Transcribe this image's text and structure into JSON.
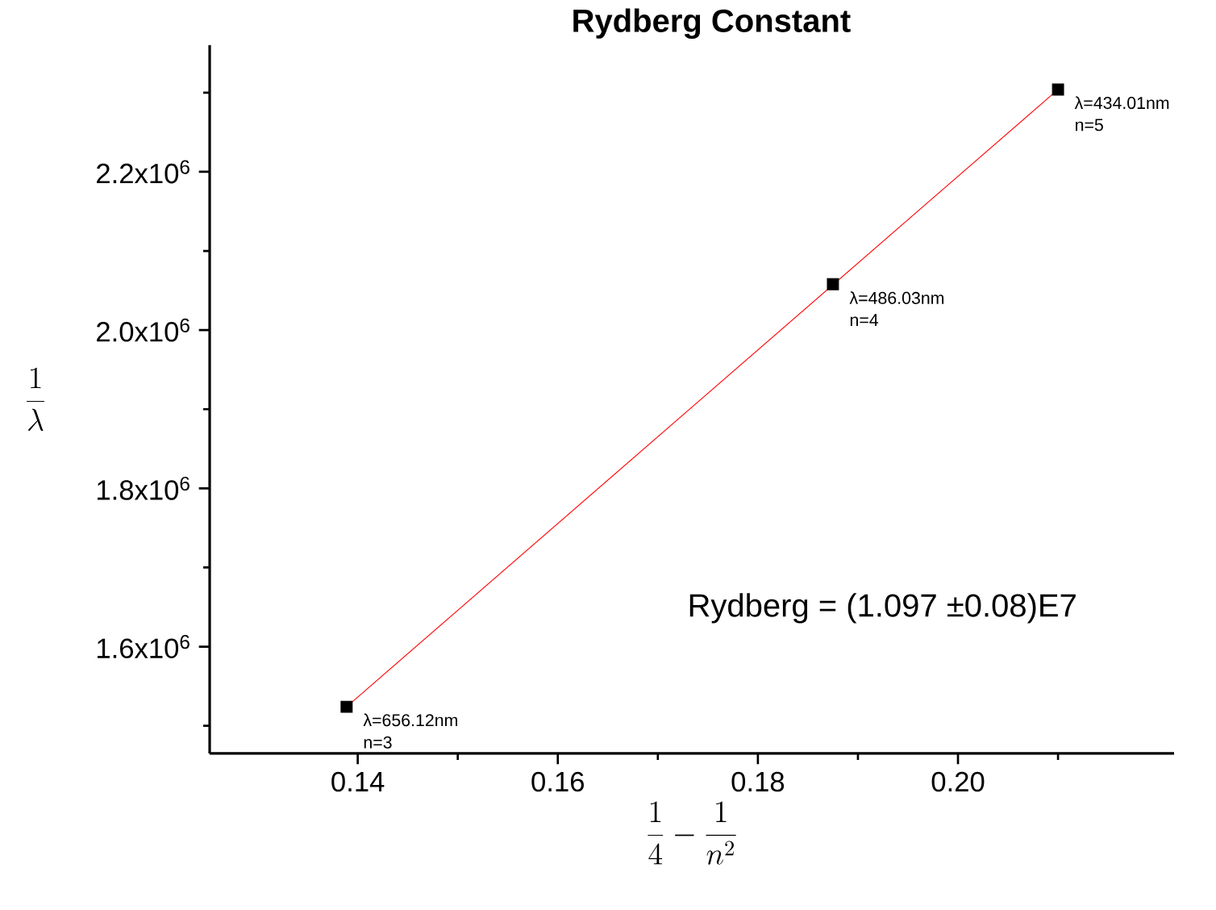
{
  "chart_data": {
    "type": "scatter",
    "title": "Rydberg Constant",
    "xlabel": "\\frac{1}{4}-\\frac{1}{n^{2}}",
    "ylabel": "\\frac{1}{\\lambda}",
    "x": [
      0.13889,
      0.1875,
      0.21
    ],
    "series": [
      {
        "color": "#000000",
        "marker": "square",
        "values": [
          1524000,
          2058000,
          2304000
        ]
      },
      {
        "type": "line",
        "color": "#ff0000",
        "marker": "none",
        "x": [
          0.13889,
          0.21
        ],
        "values": [
          1524000,
          2304000
        ]
      }
    ],
    "xlim": [
      0.1252,
      0.2216
    ],
    "ylim": [
      1465000,
      2360000
    ],
    "xticks": [
      0.14,
      {
        "value": 0.15,
        "label": null
      },
      0.16,
      {
        "value": 0.17,
        "label": null
      },
      0.18,
      {
        "value": 0.19,
        "label": null
      },
      {
        "value": 0.2,
        "label": "0.20"
      },
      {
        "value": 0.21,
        "label": null
      }
    ],
    "yticks": [
      {
        "value": 1500000,
        "label": null
      },
      {
        "value": 1600000,
        "label": "1.6x10$^{6}$"
      },
      {
        "value": 1700000,
        "label": null
      },
      {
        "value": 1800000,
        "label": "1.8x10$^{6}$"
      },
      {
        "value": 1900000,
        "label": null
      },
      {
        "value": 2000000,
        "label": "2.0x10$^{6}$"
      },
      {
        "value": 2100000,
        "label": null
      },
      {
        "value": 2200000,
        "label": "2.2x10$^{6}$"
      },
      {
        "value": 2300000,
        "label": null
      }
    ],
    "annotations": [
      {
        "text": "λ=656.12nm",
        "x": 0.13889,
        "y": 1524000
      },
      {
        "text": "n=3",
        "x": 0.13889,
        "y": 1524000
      },
      {
        "text": "λ=486.03nm",
        "x": 0.1875,
        "y": 2057500
      },
      {
        "text": "n=4",
        "x": 0.1875,
        "y": 2057500
      },
      {
        "text": "λ=434.01nm",
        "x": 0.21,
        "y": 2304000
      },
      {
        "text": "n=5",
        "x": 0.21,
        "y": 2304000
      },
      "Rydberg = (1.097 ±0.08)E7"
    ]
  }
}
